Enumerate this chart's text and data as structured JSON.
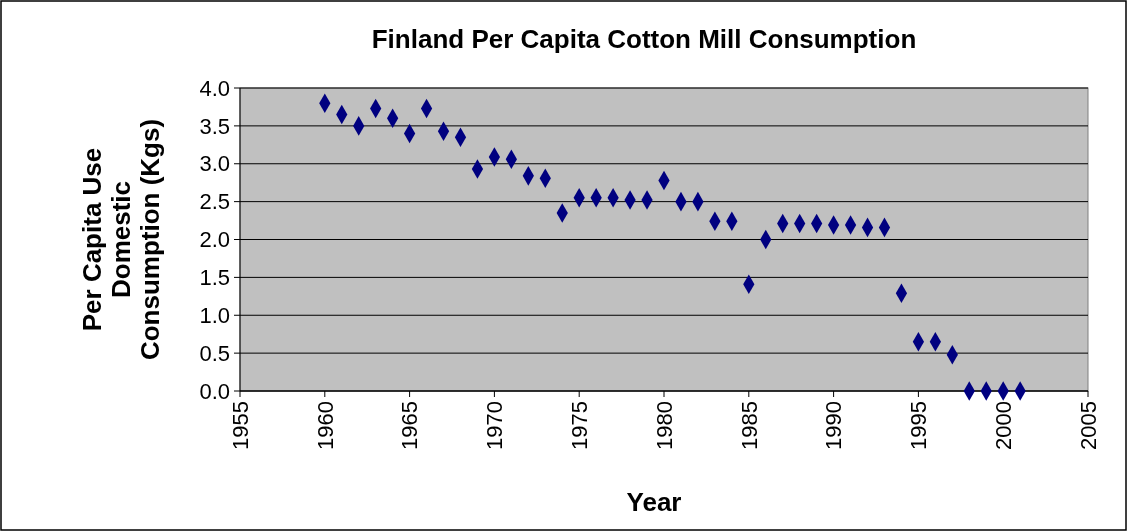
{
  "chart_data": {
    "type": "scatter",
    "title": "Finland Per Capita Cotton Mill Consumption",
    "xlabel": "Year",
    "ylabel": "Per Capita Use Domestic Consumption (Kgs)",
    "x": [
      1960,
      1961,
      1962,
      1963,
      1964,
      1965,
      1966,
      1967,
      1968,
      1969,
      1970,
      1971,
      1972,
      1973,
      1974,
      1975,
      1976,
      1977,
      1978,
      1979,
      1980,
      1981,
      1982,
      1983,
      1984,
      1985,
      1986,
      1987,
      1988,
      1989,
      1990,
      1991,
      1992,
      1993,
      1994,
      1995,
      1996,
      1997,
      1998,
      1999,
      2000,
      2001
    ],
    "series": [
      {
        "color": "#000080",
        "values": [
          3.8,
          3.65,
          3.5,
          3.73,
          3.6,
          3.4,
          3.73,
          3.43,
          3.35,
          2.93,
          3.09,
          3.06,
          2.84,
          2.81,
          2.35,
          2.55,
          2.55,
          2.55,
          2.52,
          2.52,
          2.78,
          2.5,
          2.5,
          2.24,
          2.24,
          1.41,
          2.0,
          2.21,
          2.21,
          2.21,
          2.19,
          2.19,
          2.16,
          2.16,
          1.29,
          0.65,
          0.65,
          0.48,
          0,
          0,
          0,
          0
        ]
      }
    ],
    "xlim": [
      1955,
      2005
    ],
    "xticks": [
      1955,
      1960,
      1965,
      1970,
      1975,
      1980,
      1985,
      1990,
      1995,
      2000,
      2005
    ],
    "ylim": [
      0,
      4
    ],
    "yticks": [
      {
        "value": 0,
        "label": "0.0"
      },
      {
        "value": 0.5,
        "label": "0.5"
      },
      {
        "value": 1,
        "label": "1.0"
      },
      {
        "value": 1.5,
        "label": "1.5"
      },
      {
        "value": 2,
        "label": "2.0"
      },
      {
        "value": 2.5,
        "label": "2.5"
      },
      {
        "value": 3,
        "label": "3.0"
      },
      {
        "value": 3.5,
        "label": "3.5"
      },
      {
        "value": 4,
        "label": "4.0"
      }
    ],
    "grid": "y",
    "marker": "diamond"
  }
}
